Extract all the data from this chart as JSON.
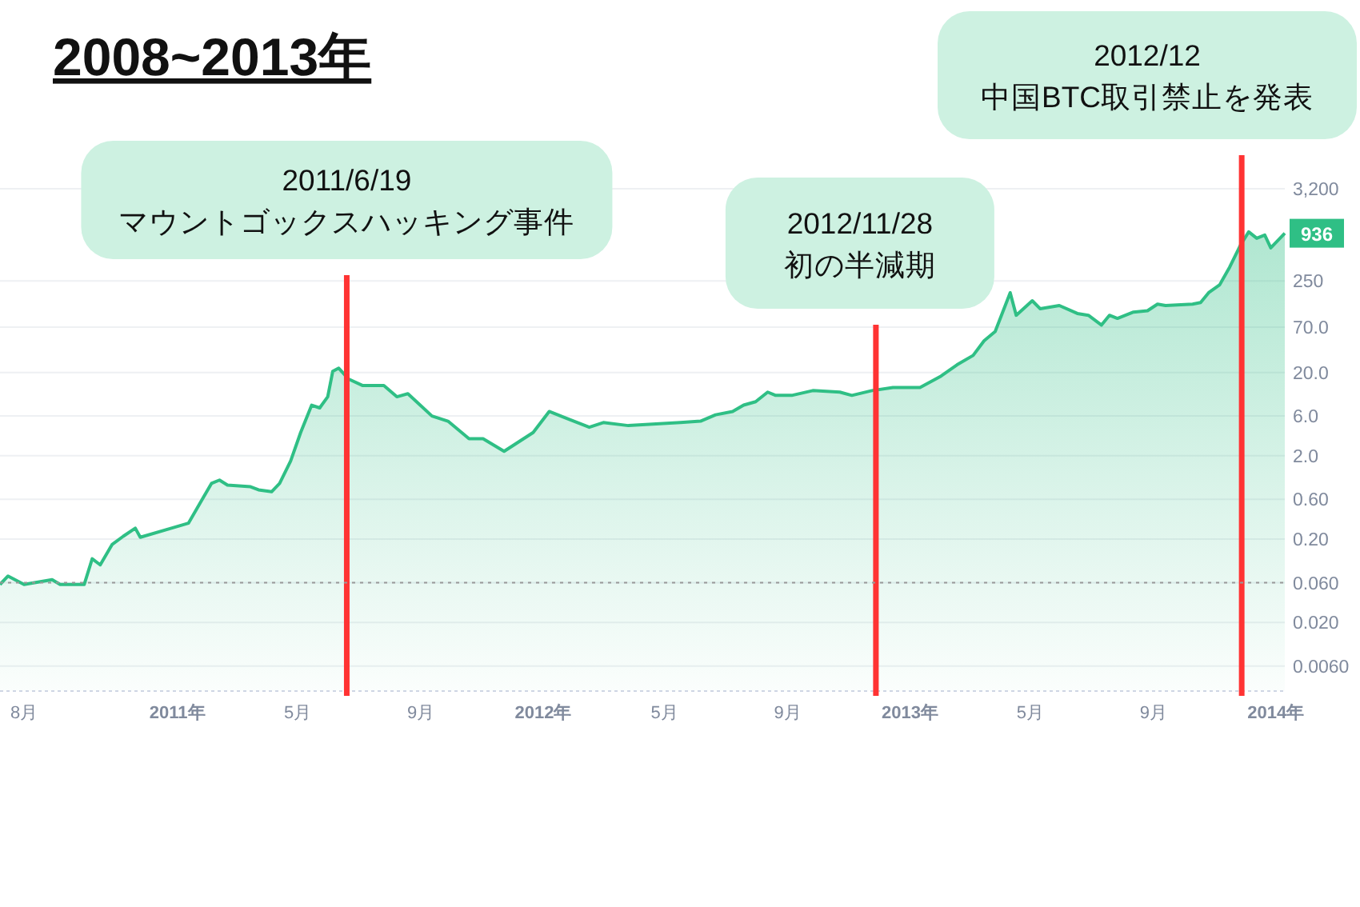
{
  "chart_data": {
    "type": "area",
    "title": "2008~2013年",
    "log": "y",
    "grid": "y",
    "tick_labels": "xy",
    "xlim": [
      "2010-07-08",
      "2014-01-10"
    ],
    "xticks": [
      {
        "value": "2010-08-01",
        "label": "8月"
      },
      {
        "value": "2011-01-01",
        "label": "2011年"
      },
      {
        "value": "2011-05-01",
        "label": "5月"
      },
      {
        "value": "2011-09-01",
        "label": "9月"
      },
      {
        "value": "2012-01-01",
        "label": "2012年"
      },
      {
        "value": "2012-05-01",
        "label": "5月"
      },
      {
        "value": "2012-09-01",
        "label": "9月"
      },
      {
        "value": "2013-01-01",
        "label": "2013年"
      },
      {
        "value": "2013-05-01",
        "label": "5月"
      },
      {
        "value": "2013-09-01",
        "label": "9月"
      },
      {
        "value": "2014-01-01",
        "label": "2014年"
      }
    ],
    "ylim": [
      0.003,
      3200
    ],
    "yticks": [
      {
        "value": 0.006,
        "label": "0.0060"
      },
      {
        "value": 0.02,
        "label": "0.020"
      },
      {
        "value": 0.06,
        "label": "0.060"
      },
      {
        "value": 0.2,
        "label": "0.20"
      },
      {
        "value": 0.6,
        "label": "0.60"
      },
      {
        "value": 2,
        "label": "2.0"
      },
      {
        "value": 6,
        "label": "6.0"
      },
      {
        "value": 20,
        "label": "20.0"
      },
      {
        "value": 70,
        "label": "70.0"
      },
      250,
      {
        "value": 3200,
        "label": "3,200"
      }
    ],
    "x": [
      "2010-07-08",
      "2010-07-16",
      "2010-08-01",
      "2010-08-29",
      "2010-09-06",
      "2010-09-30",
      "2010-10-08",
      "2010-10-16",
      "2010-10-28",
      "2010-11-08",
      "2010-11-20",
      "2010-11-25",
      "2010-12-26",
      "2011-01-12",
      "2011-02-04",
      "2011-02-12",
      "2011-02-20",
      "2011-03-15",
      "2011-03-23",
      "2011-04-05",
      "2011-04-13",
      "2011-04-24",
      "2011-05-04",
      "2011-05-15",
      "2011-05-23",
      "2011-05-31",
      "2011-06-05",
      "2011-06-11",
      "2011-06-21",
      "2011-07-05",
      "2011-07-26",
      "2011-08-08",
      "2011-08-19",
      "2011-09-12",
      "2011-09-28",
      "2011-10-19",
      "2011-11-02",
      "2011-11-23",
      "2011-12-22",
      "2012-01-07",
      "2012-01-23",
      "2012-02-16",
      "2012-03-01",
      "2012-03-26",
      "2012-05-17",
      "2012-06-06",
      "2012-06-21",
      "2012-07-08",
      "2012-07-19",
      "2012-07-31",
      "2012-08-12",
      "2012-08-20",
      "2012-09-05",
      "2012-09-26",
      "2012-10-23",
      "2012-11-04",
      "2012-11-24",
      "2012-12-15",
      "2013-01-11",
      "2013-02-01",
      "2013-02-17",
      "2013-03-05",
      "2013-03-16",
      "2013-03-27",
      "2013-04-11",
      "2013-04-17",
      "2013-05-03",
      "2013-05-11",
      "2013-05-30",
      "2013-06-17",
      "2013-06-28",
      "2013-07-11",
      "2013-07-19",
      "2013-07-27",
      "2013-08-12",
      "2013-08-26",
      "2013-09-05",
      "2013-09-13",
      "2013-10-10",
      "2013-10-18",
      "2013-10-26",
      "2013-11-06",
      "2013-11-16",
      "2013-11-27",
      "2013-12-05",
      "2013-12-13",
      "2013-12-21",
      "2013-12-27",
      "2014-01-10"
    ],
    "series": [
      {
        "color": "#2fbf85",
        "values": [
          0.057,
          0.072,
          0.057,
          0.065,
          0.057,
          0.057,
          0.116,
          0.098,
          0.173,
          0.216,
          0.27,
          0.21,
          0.27,
          0.31,
          0.93,
          1.02,
          0.89,
          0.85,
          0.78,
          0.74,
          0.93,
          1.73,
          3.8,
          8.1,
          7.5,
          10.2,
          20.6,
          22.5,
          16.6,
          13.9,
          13.9,
          10.2,
          11.1,
          6.0,
          5.2,
          3.2,
          3.2,
          2.26,
          3.8,
          6.8,
          5.7,
          4.4,
          5.0,
          4.6,
          5.0,
          5.2,
          6.2,
          6.8,
          8.1,
          8.9,
          11.6,
          10.6,
          10.6,
          12.1,
          11.6,
          10.6,
          12.1,
          13.2,
          13.2,
          18.1,
          24.7,
          32,
          48,
          62,
          181,
          97,
          145,
          116,
          127,
          102,
          97,
          74,
          97,
          89,
          106,
          110,
          132,
          127,
          132,
          138,
          181,
          225,
          367,
          682,
          973,
          815,
          890,
          625,
          936
        ],
        "value_labels": [
          null,
          null,
          null,
          null,
          null,
          null,
          null,
          null,
          null,
          null,
          null,
          null,
          null,
          null,
          null,
          null,
          null,
          null,
          null,
          null,
          null,
          null,
          null,
          null,
          null,
          null,
          null,
          null,
          null,
          null,
          null,
          null,
          null,
          null,
          null,
          null,
          null,
          null,
          null,
          null,
          null,
          null,
          null,
          null,
          null,
          null,
          null,
          null,
          null,
          null,
          null,
          null,
          null,
          null,
          null,
          null,
          null,
          null,
          null,
          null,
          null,
          null,
          null,
          null,
          null,
          null,
          null,
          null,
          null,
          null,
          null,
          null,
          null,
          null,
          null,
          null,
          null,
          null,
          null,
          null,
          null,
          null,
          null,
          null,
          null,
          null,
          null,
          null,
          "936"
        ]
      }
    ],
    "ref_lines": [
      {
        "axis": "x",
        "value": "2011-06-19",
        "label": "2011/6/19\nマウントゴックスハッキング事件",
        "color": "#ff3333"
      },
      {
        "axis": "x",
        "value": "2012-11-28",
        "label": "2012/11/28\n初の半減期",
        "color": "#ff3333"
      },
      {
        "axis": "x",
        "value": "2013-11-28",
        "label": "2012/12\n中国BTC取引禁止を発表",
        "color": "#ff3333"
      },
      {
        "axis": "y",
        "value": 0.06,
        "color": "#999999",
        "line_style": "dotted"
      }
    ]
  }
}
